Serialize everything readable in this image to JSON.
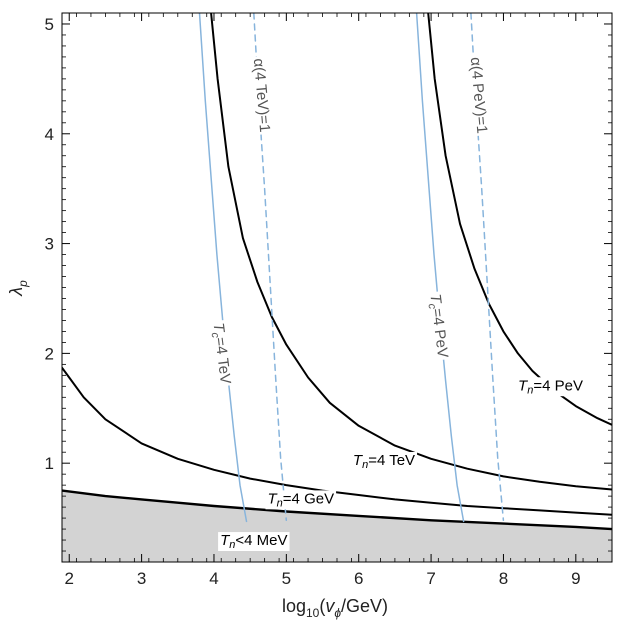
{
  "chart_data": {
    "type": "line",
    "xlabel": "log10(vϕ/GeV)",
    "ylabel": "λp",
    "xlim": [
      1.9,
      9.5
    ],
    "ylim": [
      0.1,
      5.1
    ],
    "x_ticks": [
      2,
      3,
      4,
      5,
      6,
      7,
      8,
      9
    ],
    "y_ticks": [
      1,
      2,
      3,
      4,
      5
    ],
    "grid": false,
    "colors": {
      "black": "#000000",
      "blue": "#87b4dc",
      "shade": "#d3d3d3",
      "label_gray": "#555555"
    },
    "series": [
      {
        "name": "Tn=4 PeV",
        "color": "#000000",
        "style": "solid",
        "x": [
          6.96,
          7.05,
          7.2,
          7.4,
          7.6,
          7.8,
          8.0,
          8.2,
          8.4,
          8.7,
          9.0,
          9.3,
          9.5
        ],
        "y": [
          5.1,
          4.5,
          3.8,
          3.18,
          2.77,
          2.45,
          2.2,
          2.0,
          1.84,
          1.66,
          1.52,
          1.41,
          1.35
        ]
      },
      {
        "name": "Tn=4 TeV",
        "color": "#000000",
        "style": "solid",
        "x": [
          3.96,
          4.05,
          4.2,
          4.4,
          4.6,
          4.8,
          5.0,
          5.3,
          5.6,
          6.0,
          6.5,
          7.0,
          7.5,
          8.0,
          8.5,
          9.0,
          9.5
        ],
        "y": [
          5.1,
          4.5,
          3.7,
          3.05,
          2.65,
          2.33,
          2.08,
          1.78,
          1.55,
          1.34,
          1.16,
          1.04,
          0.95,
          0.88,
          0.83,
          0.79,
          0.76
        ]
      },
      {
        "name": "Tn=4 GeV",
        "color": "#000000",
        "style": "solid",
        "x": [
          1.9,
          2.0,
          2.2,
          2.5,
          3.0,
          3.5,
          4.0,
          4.5,
          5.0,
          5.5,
          6.0,
          6.5,
          7.0,
          7.5,
          8.0,
          8.5,
          9.0,
          9.5
        ],
        "y": [
          1.87,
          1.78,
          1.6,
          1.4,
          1.18,
          1.04,
          0.94,
          0.86,
          0.8,
          0.75,
          0.71,
          0.67,
          0.64,
          0.61,
          0.59,
          0.57,
          0.55,
          0.53
        ]
      },
      {
        "name": "Tn<4 MeV",
        "color": "#000000",
        "style": "solid",
        "fill": "#d3d3d3",
        "x": [
          1.9,
          2.5,
          3.0,
          3.5,
          4.0,
          5.0,
          6.0,
          7.0,
          8.0,
          9.0,
          9.5
        ],
        "y": [
          0.75,
          0.7,
          0.67,
          0.64,
          0.61,
          0.56,
          0.52,
          0.48,
          0.45,
          0.42,
          0.4
        ]
      },
      {
        "name": "Tc=4 TeV",
        "color": "#87b4dc",
        "style": "solid",
        "x": [
          3.8,
          3.88,
          3.96,
          4.04,
          4.12,
          4.2,
          4.28,
          4.36,
          4.45
        ],
        "y": [
          5.1,
          4.3,
          3.6,
          2.9,
          2.3,
          1.75,
          1.25,
          0.8,
          0.47
        ]
      },
      {
        "name": "α(4 TeV)=1",
        "color": "#87b4dc",
        "style": "dashed",
        "x": [
          4.55,
          4.62,
          4.7,
          4.78,
          4.85,
          4.92,
          5.0
        ],
        "y": [
          5.1,
          4.3,
          3.5,
          2.6,
          1.8,
          1.05,
          0.48
        ]
      },
      {
        "name": "Tc=4 PeV",
        "color": "#87b4dc",
        "style": "solid",
        "x": [
          6.8,
          6.88,
          6.96,
          7.04,
          7.12,
          7.2,
          7.28,
          7.36,
          7.45
        ],
        "y": [
          5.1,
          4.3,
          3.6,
          2.9,
          2.3,
          1.75,
          1.25,
          0.8,
          0.47
        ]
      },
      {
        "name": "α(4 PeV)=1",
        "color": "#87b4dc",
        "style": "dashed",
        "x": [
          7.55,
          7.62,
          7.7,
          7.78,
          7.85,
          7.92,
          8.0
        ],
        "y": [
          5.1,
          4.3,
          3.5,
          2.6,
          1.8,
          1.05,
          0.48
        ]
      }
    ],
    "annotations": [
      {
        "key": "tn_pev",
        "text_main": "T",
        "text_sub": "n",
        "text_rest": "=4 PeV",
        "x": 8.65,
        "y": 1.7,
        "rotate": 0,
        "color": "#000000"
      },
      {
        "key": "tn_tev",
        "text_main": "T",
        "text_sub": "n",
        "text_rest": "=4 TeV",
        "x": 6.35,
        "y": 1.02,
        "rotate": 0,
        "color": "#000000"
      },
      {
        "key": "tn_gev",
        "text_main": "T",
        "text_sub": "n",
        "text_rest": "=4 GeV",
        "x": 5.2,
        "y": 0.67,
        "rotate": 0,
        "color": "#000000"
      },
      {
        "key": "tn_mev",
        "text_main": "T",
        "text_sub": "n",
        "text_rest": "<4 MeV",
        "x": 4.55,
        "y": 0.29,
        "rotate": 0,
        "color": "#000000"
      },
      {
        "key": "tc_tev",
        "text_main": "T",
        "text_sub": "c",
        "text_rest": "=4 TeV",
        "x": 4.1,
        "y": 2.0,
        "rotate": 83,
        "color": "#555555"
      },
      {
        "key": "tc_pev",
        "text_main": "T",
        "text_sub": "c",
        "text_rest": "=4 PeV",
        "x": 7.1,
        "y": 2.25,
        "rotate": 83,
        "color": "#555555"
      },
      {
        "key": "alpha_tev",
        "text_main": "α(4 TeV)=1",
        "text_sub": "",
        "text_rest": "",
        "x": 4.65,
        "y": 4.35,
        "rotate": 85,
        "color": "#555555"
      },
      {
        "key": "alpha_pev",
        "text_main": "α(4 PeV)=1",
        "text_sub": "",
        "text_rest": "",
        "x": 7.65,
        "y": 4.35,
        "rotate": 85,
        "color": "#555555"
      }
    ]
  }
}
